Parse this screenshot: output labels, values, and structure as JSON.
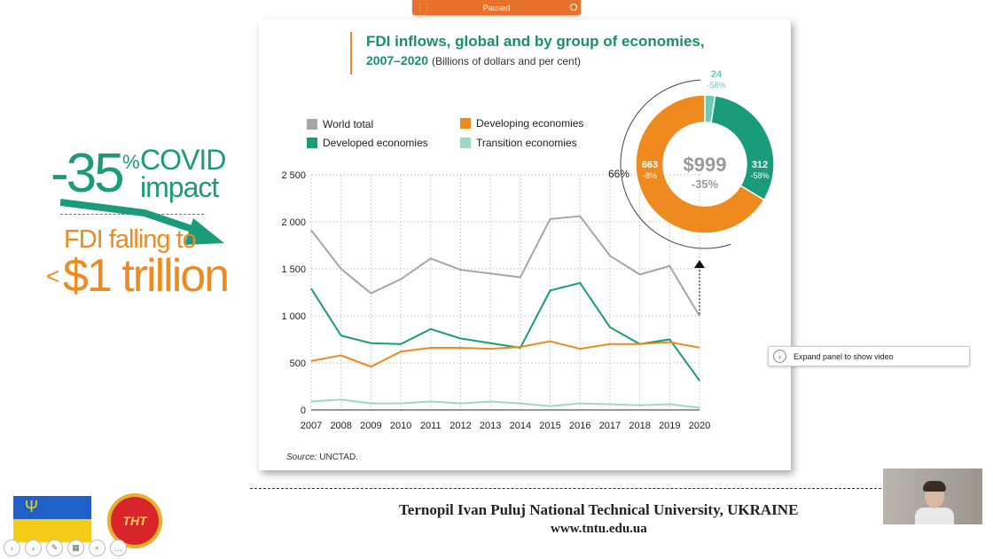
{
  "player": {
    "status": "Paused",
    "expand_label": "Expand panel to show video"
  },
  "left_panel": {
    "covid_number": "-35",
    "covid_percent": "%",
    "covid_word": "COVID impact",
    "fdi_falling": "FDI falling to",
    "fdi_lt": "<",
    "fdi_amount": "$1 trillion"
  },
  "chart_title": {
    "line1": "FDI inflows, global and by group of economies,",
    "line2": "2007–2020",
    "subtitle": "(Billions of dollars and per cent)"
  },
  "legend": {
    "world": "World total",
    "developing": "Developing economies",
    "developed": "Developed economies",
    "transition": "Transition economies"
  },
  "source": {
    "label": "Source:",
    "value": "UNCTAD."
  },
  "colors": {
    "world": "#a6a6a6",
    "developing": "#ee8a1e",
    "developed": "#1a9b7a",
    "transition": "#9fd8c8",
    "transition_donut": "#6fcab3"
  },
  "chart_data": {
    "type": "line",
    "x": [
      2007,
      2008,
      2009,
      2010,
      2011,
      2012,
      2013,
      2014,
      2015,
      2016,
      2017,
      2018,
      2019,
      2020
    ],
    "ylim": [
      0,
      2500
    ],
    "yticks": [
      "0",
      "500",
      "1 000",
      "1 500",
      "2 000",
      "2 500"
    ],
    "grid": true,
    "series": [
      {
        "name": "World total",
        "values": [
          1910,
          1500,
          1240,
          1390,
          1610,
          1490,
          1450,
          1410,
          2030,
          2060,
          1640,
          1440,
          1530,
          999
        ]
      },
      {
        "name": "Developed economies",
        "values": [
          1290,
          790,
          710,
          700,
          860,
          760,
          710,
          660,
          1270,
          1350,
          880,
          700,
          750,
          312
        ]
      },
      {
        "name": "Developing economies",
        "values": [
          520,
          580,
          460,
          620,
          660,
          660,
          650,
          670,
          730,
          650,
          700,
          700,
          720,
          663
        ]
      },
      {
        "name": "Transition economies",
        "values": [
          90,
          110,
          70,
          70,
          90,
          70,
          90,
          70,
          40,
          70,
          60,
          50,
          60,
          24
        ]
      }
    ],
    "donut": {
      "center_value": "$999",
      "center_change": "-35%",
      "slices": [
        {
          "name": "Developing economies",
          "value": 663,
          "label": "663",
          "change": "-8%"
        },
        {
          "name": "Developed economies",
          "value": 312,
          "label": "312",
          "change": "-58%"
        },
        {
          "name": "Transition economies",
          "value": 24,
          "label": "24",
          "change": "-58%"
        }
      ],
      "share_label": "66%"
    }
  },
  "footer": {
    "university": "Ternopil Ivan Puluj National Technical University, UKRAINE",
    "url": "www.tntu.edu.ua",
    "logo_text": "ТНТ"
  }
}
